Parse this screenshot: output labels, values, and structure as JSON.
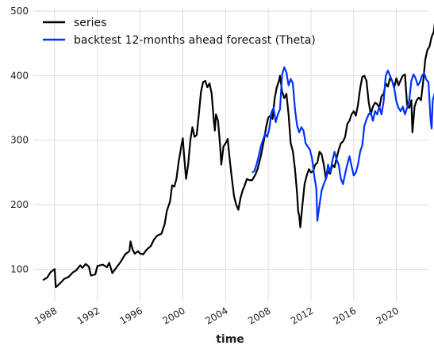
{
  "chart_data": {
    "type": "line",
    "xlabel": "time",
    "ylabel": "",
    "xlim": [
      1986.0,
      2023.0
    ],
    "ylim": [
      50,
      505
    ],
    "x_ticks": [
      {
        "value": 1988,
        "label": "1988"
      },
      {
        "value": 1992,
        "label": "1992"
      },
      {
        "value": 1996,
        "label": "1996"
      },
      {
        "value": 2000,
        "label": "2000"
      },
      {
        "value": 2004,
        "label": "2004"
      },
      {
        "value": 2008,
        "label": "2008"
      },
      {
        "value": 2012,
        "label": "2012"
      },
      {
        "value": 2016,
        "label": "2016"
      },
      {
        "value": 2020,
        "label": "2020"
      }
    ],
    "y_ticks": [
      {
        "value": 100,
        "label": "100"
      },
      {
        "value": 200,
        "label": "200"
      },
      {
        "value": 300,
        "label": "300"
      },
      {
        "value": 400,
        "label": "400"
      },
      {
        "value": 500,
        "label": "500"
      }
    ],
    "grid": true,
    "legend_position": "top-left",
    "series": [
      {
        "name": "series",
        "color": "#000000",
        "points": [
          [
            1986.9,
            83
          ],
          [
            1987.3,
            87
          ],
          [
            1987.6,
            95
          ],
          [
            1987.9,
            99
          ],
          [
            1988.0,
            100
          ],
          [
            1988.1,
            72
          ],
          [
            1988.5,
            78
          ],
          [
            1988.9,
            85
          ],
          [
            1989.3,
            88
          ],
          [
            1989.7,
            95
          ],
          [
            1990.0,
            98
          ],
          [
            1990.4,
            106
          ],
          [
            1990.6,
            102
          ],
          [
            1990.9,
            108
          ],
          [
            1991.2,
            104
          ],
          [
            1991.4,
            90
          ],
          [
            1991.8,
            92
          ],
          [
            1992.0,
            105
          ],
          [
            1992.5,
            107
          ],
          [
            1992.9,
            103
          ],
          [
            1993.1,
            110
          ],
          [
            1993.4,
            94
          ],
          [
            1993.8,
            103
          ],
          [
            1994.2,
            112
          ],
          [
            1994.6,
            123
          ],
          [
            1995.0,
            128
          ],
          [
            1995.1,
            143
          ],
          [
            1995.3,
            130
          ],
          [
            1995.5,
            124
          ],
          [
            1995.8,
            128
          ],
          [
            1996.0,
            124
          ],
          [
            1996.3,
            123
          ],
          [
            1996.6,
            130
          ],
          [
            1997.0,
            136
          ],
          [
            1997.3,
            146
          ],
          [
            1997.6,
            152
          ],
          [
            1998.0,
            155
          ],
          [
            1998.3,
            170
          ],
          [
            1998.5,
            190
          ],
          [
            1998.8,
            205
          ],
          [
            1999.0,
            230
          ],
          [
            1999.2,
            228
          ],
          [
            1999.4,
            240
          ],
          [
            1999.6,
            265
          ],
          [
            1999.9,
            295
          ],
          [
            2000.0,
            303
          ],
          [
            2000.1,
            280
          ],
          [
            2000.3,
            240
          ],
          [
            2000.5,
            262
          ],
          [
            2000.7,
            300
          ],
          [
            2000.9,
            320
          ],
          [
            2001.1,
            305
          ],
          [
            2001.3,
            308
          ],
          [
            2001.5,
            340
          ],
          [
            2001.7,
            375
          ],
          [
            2001.9,
            390
          ],
          [
            2002.1,
            392
          ],
          [
            2002.3,
            382
          ],
          [
            2002.5,
            388
          ],
          [
            2002.7,
            372
          ],
          [
            2002.9,
            330
          ],
          [
            2003.0,
            315
          ],
          [
            2003.1,
            340
          ],
          [
            2003.3,
            330
          ],
          [
            2003.5,
            290
          ],
          [
            2003.6,
            262
          ],
          [
            2003.8,
            290
          ],
          [
            2004.0,
            295
          ],
          [
            2004.2,
            302
          ],
          [
            2004.4,
            268
          ],
          [
            2004.6,
            240
          ],
          [
            2004.8,
            213
          ],
          [
            2005.0,
            200
          ],
          [
            2005.2,
            192
          ],
          [
            2005.4,
            210
          ],
          [
            2005.6,
            222
          ],
          [
            2005.8,
            230
          ],
          [
            2006.0,
            240
          ],
          [
            2006.2,
            238
          ],
          [
            2006.5,
            238
          ],
          [
            2006.8,
            247
          ],
          [
            2007.0,
            255
          ],
          [
            2007.3,
            275
          ],
          [
            2007.6,
            300
          ],
          [
            2007.8,
            320
          ],
          [
            2008.0,
            335
          ],
          [
            2008.2,
            338
          ],
          [
            2008.4,
            333
          ],
          [
            2008.6,
            365
          ],
          [
            2008.8,
            382
          ],
          [
            2009.0,
            392
          ],
          [
            2009.1,
            400
          ],
          [
            2009.3,
            375
          ],
          [
            2009.5,
            365
          ],
          [
            2009.7,
            372
          ],
          [
            2009.9,
            340
          ],
          [
            2010.1,
            295
          ],
          [
            2010.3,
            283
          ],
          [
            2010.5,
            255
          ],
          [
            2010.7,
            218
          ],
          [
            2010.8,
            190
          ],
          [
            2010.9,
            183
          ],
          [
            2011.0,
            165
          ],
          [
            2011.2,
            200
          ],
          [
            2011.4,
            232
          ],
          [
            2011.6,
            245
          ],
          [
            2011.8,
            255
          ],
          [
            2012.0,
            250
          ],
          [
            2012.2,
            252
          ],
          [
            2012.4,
            262
          ],
          [
            2012.6,
            265
          ],
          [
            2012.8,
            282
          ],
          [
            2013.0,
            278
          ],
          [
            2013.2,
            262
          ],
          [
            2013.4,
            240
          ],
          [
            2013.6,
            252
          ],
          [
            2013.8,
            248
          ],
          [
            2014.0,
            262
          ],
          [
            2014.2,
            258
          ],
          [
            2014.4,
            272
          ],
          [
            2014.6,
            285
          ],
          [
            2014.8,
            295
          ],
          [
            2015.0,
            298
          ],
          [
            2015.2,
            305
          ],
          [
            2015.4,
            325
          ],
          [
            2015.6,
            330
          ],
          [
            2015.8,
            340
          ],
          [
            2016.0,
            345
          ],
          [
            2016.2,
            338
          ],
          [
            2016.4,
            355
          ],
          [
            2016.6,
            380
          ],
          [
            2016.8,
            398
          ],
          [
            2017.0,
            400
          ],
          [
            2017.2,
            392
          ],
          [
            2017.4,
            360
          ],
          [
            2017.6,
            340
          ],
          [
            2017.8,
            352
          ],
          [
            2018.0,
            358
          ],
          [
            2018.2,
            356
          ],
          [
            2018.4,
            350
          ],
          [
            2018.6,
            368
          ],
          [
            2018.8,
            372
          ],
          [
            2019.0,
            388
          ],
          [
            2019.2,
            383
          ],
          [
            2019.4,
            396
          ],
          [
            2019.6,
            392
          ],
          [
            2019.8,
            382
          ],
          [
            2020.0,
            396
          ],
          [
            2020.2,
            385
          ],
          [
            2020.4,
            393
          ],
          [
            2020.6,
            400
          ],
          [
            2020.8,
            402
          ],
          [
            2021.0,
            355
          ],
          [
            2021.2,
            350
          ],
          [
            2021.4,
            362
          ],
          [
            2021.5,
            312
          ],
          [
            2021.7,
            352
          ],
          [
            2021.9,
            362
          ],
          [
            2022.1,
            366
          ],
          [
            2022.3,
            362
          ],
          [
            2022.5,
            390
          ],
          [
            2022.7,
            425
          ],
          [
            2022.9,
            440
          ],
          [
            2023.1,
            445
          ],
          [
            2023.3,
            460
          ],
          [
            2023.5,
            468
          ],
          [
            2023.6,
            482
          ],
          [
            2023.7,
            490
          ],
          [
            2023.8,
            491
          ]
        ]
      },
      {
        "name": "backtest 12-months ahead forecast (Theta)",
        "color": "#0032ff",
        "points": [
          [
            2006.5,
            250
          ],
          [
            2006.7,
            252
          ],
          [
            2006.9,
            262
          ],
          [
            2007.1,
            275
          ],
          [
            2007.3,
            290
          ],
          [
            2007.5,
            300
          ],
          [
            2007.7,
            310
          ],
          [
            2007.9,
            305
          ],
          [
            2008.1,
            318
          ],
          [
            2008.3,
            343
          ],
          [
            2008.5,
            350
          ],
          [
            2008.7,
            328
          ],
          [
            2008.9,
            340
          ],
          [
            2009.1,
            348
          ],
          [
            2009.3,
            402
          ],
          [
            2009.5,
            413
          ],
          [
            2009.7,
            405
          ],
          [
            2009.9,
            385
          ],
          [
            2010.1,
            395
          ],
          [
            2010.3,
            388
          ],
          [
            2010.5,
            348
          ],
          [
            2010.7,
            323
          ],
          [
            2010.9,
            312
          ],
          [
            2011.1,
            320
          ],
          [
            2011.3,
            315
          ],
          [
            2011.5,
            295
          ],
          [
            2011.7,
            290
          ],
          [
            2011.9,
            285
          ],
          [
            2012.1,
            272
          ],
          [
            2012.3,
            245
          ],
          [
            2012.5,
            225
          ],
          [
            2012.6,
            175
          ],
          [
            2012.8,
            200
          ],
          [
            2013.0,
            222
          ],
          [
            2013.2,
            232
          ],
          [
            2013.4,
            240
          ],
          [
            2013.6,
            262
          ],
          [
            2013.8,
            250
          ],
          [
            2014.0,
            268
          ],
          [
            2014.2,
            282
          ],
          [
            2014.4,
            270
          ],
          [
            2014.6,
            262
          ],
          [
            2014.8,
            240
          ],
          [
            2015.0,
            232
          ],
          [
            2015.2,
            248
          ],
          [
            2015.4,
            262
          ],
          [
            2015.6,
            275
          ],
          [
            2015.8,
            260
          ],
          [
            2016.0,
            245
          ],
          [
            2016.2,
            250
          ],
          [
            2016.4,
            262
          ],
          [
            2016.6,
            282
          ],
          [
            2016.8,
            292
          ],
          [
            2017.0,
            322
          ],
          [
            2017.2,
            332
          ],
          [
            2017.4,
            340
          ],
          [
            2017.6,
            343
          ],
          [
            2017.8,
            330
          ],
          [
            2018.0,
            345
          ],
          [
            2018.2,
            340
          ],
          [
            2018.4,
            352
          ],
          [
            2018.6,
            340
          ],
          [
            2018.8,
            360
          ],
          [
            2019.0,
            400
          ],
          [
            2019.2,
            408
          ],
          [
            2019.4,
            400
          ],
          [
            2019.6,
            392
          ],
          [
            2019.8,
            380
          ],
          [
            2020.0,
            360
          ],
          [
            2020.2,
            350
          ],
          [
            2020.4,
            345
          ],
          [
            2020.6,
            352
          ],
          [
            2020.8,
            340
          ],
          [
            2021.0,
            350
          ],
          [
            2021.2,
            362
          ],
          [
            2021.4,
            392
          ],
          [
            2021.6,
            402
          ],
          [
            2021.8,
            396
          ],
          [
            2022.0,
            385
          ],
          [
            2022.2,
            390
          ],
          [
            2022.4,
            400
          ],
          [
            2022.6,
            404
          ],
          [
            2022.8,
            394
          ],
          [
            2023.0,
            390
          ],
          [
            2023.2,
            332
          ],
          [
            2023.3,
            318
          ],
          [
            2023.4,
            362
          ],
          [
            2023.6,
            374
          ],
          [
            2023.7,
            360
          ],
          [
            2023.8,
            404
          ],
          [
            2023.9,
            408
          ]
        ]
      }
    ]
  }
}
